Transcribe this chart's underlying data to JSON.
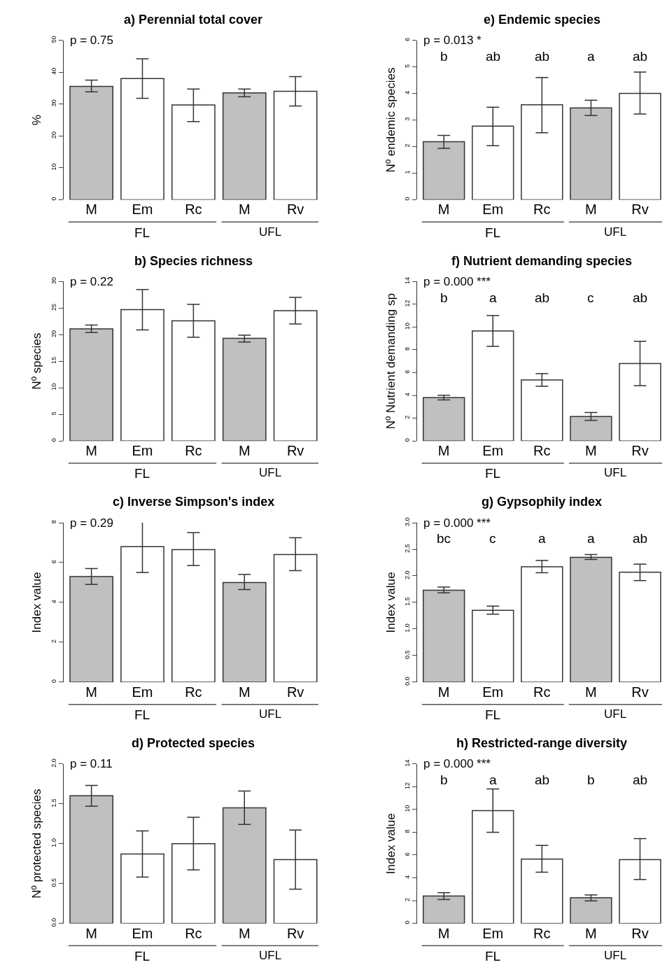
{
  "chart_data": [
    {
      "type": "bar",
      "title": "a) Perennial total cover",
      "ylabel": "%",
      "categories": [
        "M",
        "Em",
        "Rc",
        "M",
        "Rv"
      ],
      "values": [
        35.5,
        38,
        29.7,
        33.5,
        34
      ],
      "colors": [
        "#c0c0c0",
        "#ffffff",
        "#ffffff",
        "#c0c0c0",
        "#ffffff"
      ],
      "errors": [
        [
          33.8,
          37.5
        ],
        [
          31.8,
          44.2
        ],
        [
          24.5,
          34.7
        ],
        [
          32.3,
          34.7
        ],
        [
          29.4,
          38.6
        ]
      ],
      "ylim": [
        0,
        50
      ],
      "yticks": [
        0,
        10,
        20,
        30,
        40,
        50
      ],
      "annotations": [
        "p = 0.75",
        "FL",
        "UFL"
      ]
    },
    {
      "type": "bar",
      "title": "e) Endemic species",
      "ylabel": "Nº endemic species",
      "categories": [
        "M",
        "Em",
        "Rc",
        "M",
        "Rv"
      ],
      "values": [
        2.18,
        2.77,
        3.57,
        3.45,
        4.0
      ],
      "colors": [
        "#c0c0c0",
        "#ffffff",
        "#ffffff",
        "#c0c0c0",
        "#ffffff"
      ],
      "errors": [
        [
          1.93,
          2.42
        ],
        [
          2.03,
          3.48
        ],
        [
          2.52,
          4.6
        ],
        [
          3.17,
          3.74
        ],
        [
          3.22,
          4.8
        ]
      ],
      "ylim": [
        0,
        6
      ],
      "yticks": [
        0,
        1,
        2,
        3,
        4,
        5,
        6
      ],
      "annotations": [
        "p = 0.013 *",
        "b",
        "ab",
        "ab",
        "a",
        "ab",
        "FL",
        "UFL"
      ]
    },
    {
      "type": "bar",
      "title": "b) Species richness",
      "ylabel": "Nº species",
      "categories": [
        "M",
        "Em",
        "Rc",
        "M",
        "Rv"
      ],
      "values": [
        21.1,
        24.7,
        22.6,
        19.3,
        24.5
      ],
      "colors": [
        "#c0c0c0",
        "#ffffff",
        "#ffffff",
        "#c0c0c0",
        "#ffffff"
      ],
      "errors": [
        [
          20.4,
          21.8
        ],
        [
          20.9,
          28.5
        ],
        [
          19.5,
          25.7
        ],
        [
          18.6,
          19.9
        ],
        [
          22.0,
          27.0
        ]
      ],
      "ylim": [
        0,
        30
      ],
      "yticks": [
        0,
        5,
        10,
        15,
        20,
        25,
        30
      ],
      "annotations": [
        "p = 0.22",
        "FL",
        "UFL"
      ]
    },
    {
      "type": "bar",
      "title": "f) Nutrient demanding species",
      "ylabel": "Nº Nutrient demanding sp",
      "categories": [
        "M",
        "Em",
        "Rc",
        "M",
        "Rv"
      ],
      "values": [
        3.8,
        9.65,
        5.35,
        2.15,
        6.8
      ],
      "colors": [
        "#c0c0c0",
        "#ffffff",
        "#ffffff",
        "#c0c0c0",
        "#ffffff"
      ],
      "errors": [
        [
          3.6,
          4.0
        ],
        [
          8.3,
          11.0
        ],
        [
          4.8,
          5.9
        ],
        [
          1.8,
          2.5
        ],
        [
          4.85,
          8.75
        ]
      ],
      "ylim": [
        0,
        14
      ],
      "yticks": [
        0,
        2,
        4,
        6,
        8,
        10,
        12,
        14
      ],
      "annotations": [
        "p = 0.000 ***",
        "b",
        "a",
        "ab",
        "c",
        "ab",
        "FL",
        "UFL"
      ]
    },
    {
      "type": "bar",
      "title": "c) Inverse Simpson's index",
      "ylabel": "Index value",
      "categories": [
        "M",
        "Em",
        "Rc",
        "M",
        "Rv"
      ],
      "values": [
        5.3,
        6.8,
        6.65,
        5.0,
        6.4
      ],
      "colors": [
        "#c0c0c0",
        "#ffffff",
        "#ffffff",
        "#c0c0c0",
        "#ffffff"
      ],
      "errors": [
        [
          4.9,
          5.7
        ],
        [
          5.5,
          8.1
        ],
        [
          5.85,
          7.5
        ],
        [
          4.65,
          5.4
        ],
        [
          5.6,
          7.25
        ]
      ],
      "ylim": [
        0,
        8
      ],
      "yticks": [
        0,
        2,
        4,
        6,
        8
      ],
      "annotations": [
        "p = 0.29",
        "FL",
        "UFL"
      ]
    },
    {
      "type": "bar",
      "title": "g) Gypsophily index",
      "ylabel": "Index value",
      "categories": [
        "M",
        "Em",
        "Rc",
        "M",
        "Rv"
      ],
      "values": [
        1.73,
        1.35,
        2.17,
        2.35,
        2.07
      ],
      "colors": [
        "#c0c0c0",
        "#ffffff",
        "#ffffff",
        "#c0c0c0",
        "#ffffff"
      ],
      "errors": [
        [
          1.68,
          1.79
        ],
        [
          1.28,
          1.43
        ],
        [
          2.06,
          2.29
        ],
        [
          2.31,
          2.4
        ],
        [
          1.91,
          2.22
        ]
      ],
      "ylim": [
        0,
        3
      ],
      "yticks": [
        {
          "value": 0,
          "label": "0.0"
        },
        {
          "value": 0.5,
          "label": "0.5"
        },
        {
          "value": 1,
          "label": "1.0"
        },
        {
          "value": 1.5,
          "label": "1.5"
        },
        {
          "value": 2,
          "label": "2.0"
        },
        {
          "value": 2.5,
          "label": "2.5"
        },
        {
          "value": 3,
          "label": "3.0"
        }
      ],
      "annotations": [
        "p = 0.000 ***",
        "bc",
        "c",
        "a",
        "a",
        "ab",
        "FL",
        "UFL"
      ]
    },
    {
      "type": "bar",
      "title": "d) Protected species",
      "ylabel": "Nº protected species",
      "categories": [
        "M",
        "Em",
        "Rc",
        "M",
        "Rv"
      ],
      "values": [
        1.6,
        0.87,
        1.0,
        1.45,
        0.8
      ],
      "colors": [
        "#c0c0c0",
        "#ffffff",
        "#ffffff",
        "#c0c0c0",
        "#ffffff"
      ],
      "errors": [
        [
          1.47,
          1.73
        ],
        [
          0.58,
          1.16
        ],
        [
          0.67,
          1.33
        ],
        [
          1.24,
          1.66
        ],
        [
          0.43,
          1.17
        ]
      ],
      "ylim": [
        0,
        2
      ],
      "yticks": [
        {
          "value": 0,
          "label": "0.0"
        },
        {
          "value": 0.5,
          "label": "0.5"
        },
        {
          "value": 1,
          "label": "1.0"
        },
        {
          "value": 1.5,
          "label": "1.5"
        },
        {
          "value": 2,
          "label": "2.0"
        }
      ],
      "annotations": [
        "p = 0.11",
        "FL",
        "UFL"
      ]
    },
    {
      "type": "bar",
      "title": "h) Restricted-range diversity",
      "ylabel": "Index value",
      "categories": [
        "M",
        "Em",
        "Rc",
        "M",
        "Rv"
      ],
      "values": [
        2.4,
        9.9,
        5.65,
        2.25,
        5.6
      ],
      "colors": [
        "#c0c0c0",
        "#ffffff",
        "#ffffff",
        "#c0c0c0",
        "#ffffff"
      ],
      "errors": [
        [
          2.1,
          2.7
        ],
        [
          8.0,
          11.8
        ],
        [
          4.5,
          6.85
        ],
        [
          1.98,
          2.5
        ],
        [
          3.85,
          7.45
        ]
      ],
      "ylim": [
        0,
        14
      ],
      "yticks": [
        0,
        2,
        4,
        6,
        8,
        10,
        12,
        14
      ],
      "annotations": [
        "p = 0.000 ***",
        "b",
        "a",
        "ab",
        "b",
        "ab",
        "FL",
        "UFL"
      ]
    }
  ]
}
